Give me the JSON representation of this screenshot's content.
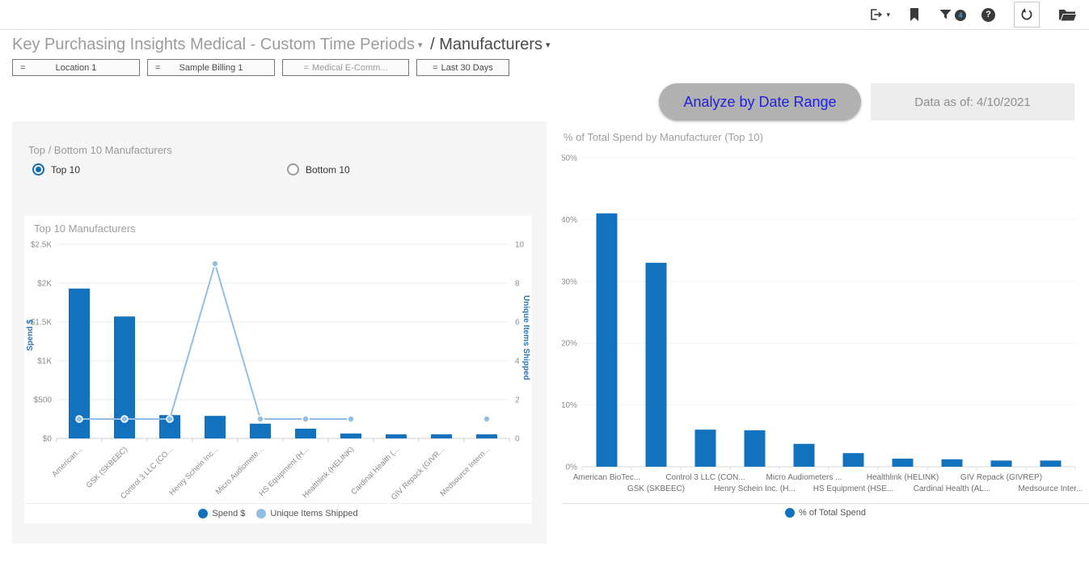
{
  "topbar": {
    "icons": [
      "export",
      "bookmark",
      "filter",
      "help",
      "refresh",
      "workbooks"
    ],
    "filter_badge": "4",
    "help_glyph": "?"
  },
  "header": {
    "title": "Key Purchasing Insights Medical - Custom Time Periods",
    "section": "/ Manufacturers"
  },
  "filters": [
    {
      "op": "=",
      "label": "Location 1"
    },
    {
      "op": "=",
      "label": "Sample Billing 1"
    },
    {
      "op": "=",
      "label": "Medical E-Comm..."
    },
    {
      "op": "=",
      "label": "Last 30 Days"
    }
  ],
  "actions": {
    "analyze_button": "Analyze by Date Range",
    "data_as_of": "Data as of: 4/10/2021"
  },
  "left_panel": {
    "title": "Top / Bottom 10 Manufacturers",
    "options": [
      {
        "label": "Top 10",
        "selected": true
      },
      {
        "label": "Bottom 10",
        "selected": false
      }
    ]
  },
  "colors": {
    "bar_blue": "#1272bd",
    "line_light_blue": "#92bee6",
    "axis_label_blue": "#2e74b5",
    "radio_blue": "#0f6cbd",
    "analyze_text_blue": "#2121de",
    "badge_number_blue": "#3d9be9"
  },
  "chart_data": [
    {
      "type": "combo-bar-line",
      "title": "Top 10 Manufacturers",
      "categories": [
        "American...",
        "GSK (SKBEEC)",
        "Control 3 LLC (CO...",
        "Henry Schein Inc...",
        "Micro Audiomete...",
        "HS Equipment (H...",
        "Healthlink (HELINK)",
        "Cardinal Health (...",
        "GIV Repack (GIVR...",
        "Medsource Intern..."
      ],
      "series": [
        {
          "name": "Spend $",
          "type": "bar",
          "axis": "left",
          "color": "#1272bd",
          "values": [
            1930,
            1570,
            300,
            290,
            190,
            125,
            63,
            52,
            52,
            52
          ]
        },
        {
          "name": "Unique Items Shipped",
          "type": "line",
          "axis": "right",
          "color": "#92bee6",
          "values": [
            1,
            1,
            1,
            9,
            1,
            1,
            1,
            null,
            null,
            1
          ]
        }
      ],
      "y_left": {
        "label": "Spend $",
        "ticks": [
          "$2.5K",
          "$2K",
          "$1.5K",
          "$1K",
          "$500",
          "$0"
        ],
        "max": 2500
      },
      "y_right": {
        "label": "Unique Items Shipped",
        "ticks": [
          "10",
          "8",
          "6",
          "4",
          "2",
          "0"
        ],
        "max": 10
      },
      "grid": true,
      "legend_position": "bottom"
    },
    {
      "type": "bar",
      "title": "% of Total Spend by Manufacturer (Top 10)",
      "categories": [
        "American BioTec...",
        "GSK (SKBEEC)",
        "Control 3 LLC (CON...",
        "Henry Schein Inc. (H...",
        "Micro Audiometers ...",
        "HS Equipment (HSE...",
        "Healthlink (HELINK)",
        "Cardinal Health (AL...",
        "GIV Repack (GIVREP)",
        "Medsource Inter..."
      ],
      "values": [
        41,
        33,
        6,
        5.9,
        3.7,
        2.2,
        1.3,
        1.2,
        1.0,
        1.0
      ],
      "y_ticks": [
        "50%",
        "40%",
        "30%",
        "20%",
        "10%",
        "0%"
      ],
      "ymax": 50,
      "ylim": [
        0,
        50
      ],
      "color": "#1272bd",
      "legend": "% of Total Spend",
      "grid": true,
      "legend_position": "bottom"
    }
  ]
}
